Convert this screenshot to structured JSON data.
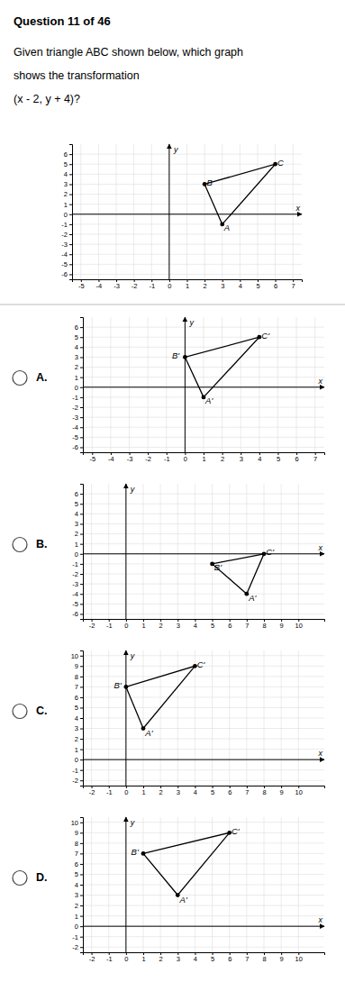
{
  "chart_data": [
    {
      "type": "line",
      "title": "Question 11 of 46",
      "subtitle": "Given triangle ABC shown below, which graph\nshows the transformation\n(x - 2, y + 4)?",
      "x_label": "x",
      "y_label": "y",
      "x": [
        3,
        2,
        6
      ],
      "values": [
        -1,
        3,
        5
      ],
      "point_labels": [
        "A",
        "B",
        "C"
      ],
      "color": "#000000",
      "marker": "circle",
      "grid": true,
      "xlim": [
        -5.5,
        7.5
      ],
      "ylim": [
        -6.5,
        7.0
      ],
      "xticks": [
        -5,
        -4,
        -3,
        -2,
        -1,
        0,
        1,
        2,
        3,
        4,
        5,
        6,
        7
      ],
      "yticks": [
        -6,
        -5,
        -4,
        -3,
        -2,
        -1,
        0,
        1,
        2,
        3,
        4,
        5,
        6
      ]
    },
    {
      "type": "line",
      "title": "A.",
      "x_label": "x",
      "y_label": "y",
      "x": [
        1,
        0,
        4
      ],
      "values": [
        -1,
        3,
        5
      ],
      "point_labels": [
        "A'",
        "B'",
        "C'"
      ],
      "color": "#000000",
      "marker": "circle",
      "grid": true,
      "xlim": [
        -5.5,
        7.5
      ],
      "ylim": [
        -6.5,
        7.0
      ],
      "xticks": [
        -5,
        -4,
        -3,
        -2,
        -1,
        0,
        1,
        2,
        3,
        4,
        5,
        6,
        7
      ],
      "yticks": [
        -6,
        -5,
        -4,
        -3,
        -2,
        -1,
        0,
        1,
        2,
        3,
        4,
        5,
        6
      ]
    },
    {
      "type": "line",
      "title": "B.",
      "x_label": "x",
      "y_label": "y",
      "x": [
        7,
        5,
        8
      ],
      "values": [
        -4,
        -1,
        0
      ],
      "point_labels": [
        "A'",
        "B'",
        "C'"
      ],
      "color": "#000000",
      "marker": "circle",
      "grid": true,
      "xlim": [
        -2.5,
        11.5
      ],
      "ylim": [
        -6.5,
        7.0
      ],
      "xticks": [
        -2,
        -1,
        0,
        1,
        2,
        3,
        4,
        5,
        6,
        7,
        8,
        9,
        10
      ],
      "yticks": [
        -6,
        -5,
        -4,
        -3,
        -2,
        -1,
        0,
        1,
        2,
        3,
        4,
        5,
        6
      ]
    },
    {
      "type": "line",
      "title": "C.",
      "x_label": "x",
      "y_label": "y",
      "x": [
        1,
        0,
        4
      ],
      "values": [
        3,
        7,
        9
      ],
      "point_labels": [
        "A'",
        "B'",
        "C'"
      ],
      "color": "#000000",
      "marker": "circle",
      "grid": true,
      "xlim": [
        -2.5,
        11.5
      ],
      "ylim": [
        -2.5,
        10.5
      ],
      "xticks": [
        -2,
        -1,
        0,
        1,
        2,
        3,
        4,
        5,
        6,
        7,
        8,
        9,
        10
      ],
      "yticks": [
        -2,
        -1,
        0,
        1,
        2,
        3,
        4,
        5,
        6,
        7,
        8,
        9,
        10
      ]
    },
    {
      "type": "line",
      "title": "D.",
      "x_label": "x",
      "y_label": "y",
      "x": [
        3,
        1,
        6
      ],
      "values": [
        3,
        7,
        9
      ],
      "point_labels": [
        "A'",
        "B'",
        "C'"
      ],
      "color": "#000000",
      "marker": "circle",
      "grid": true,
      "xlim": [
        -2.5,
        11.5
      ],
      "ylim": [
        -2.5,
        10.5
      ],
      "xticks": [
        -2,
        -1,
        0,
        1,
        2,
        3,
        4,
        5,
        6,
        7,
        8,
        9,
        10
      ],
      "yticks": [
        -2,
        -1,
        0,
        1,
        2,
        3,
        4,
        5,
        6,
        7,
        8,
        9,
        10
      ]
    }
  ]
}
